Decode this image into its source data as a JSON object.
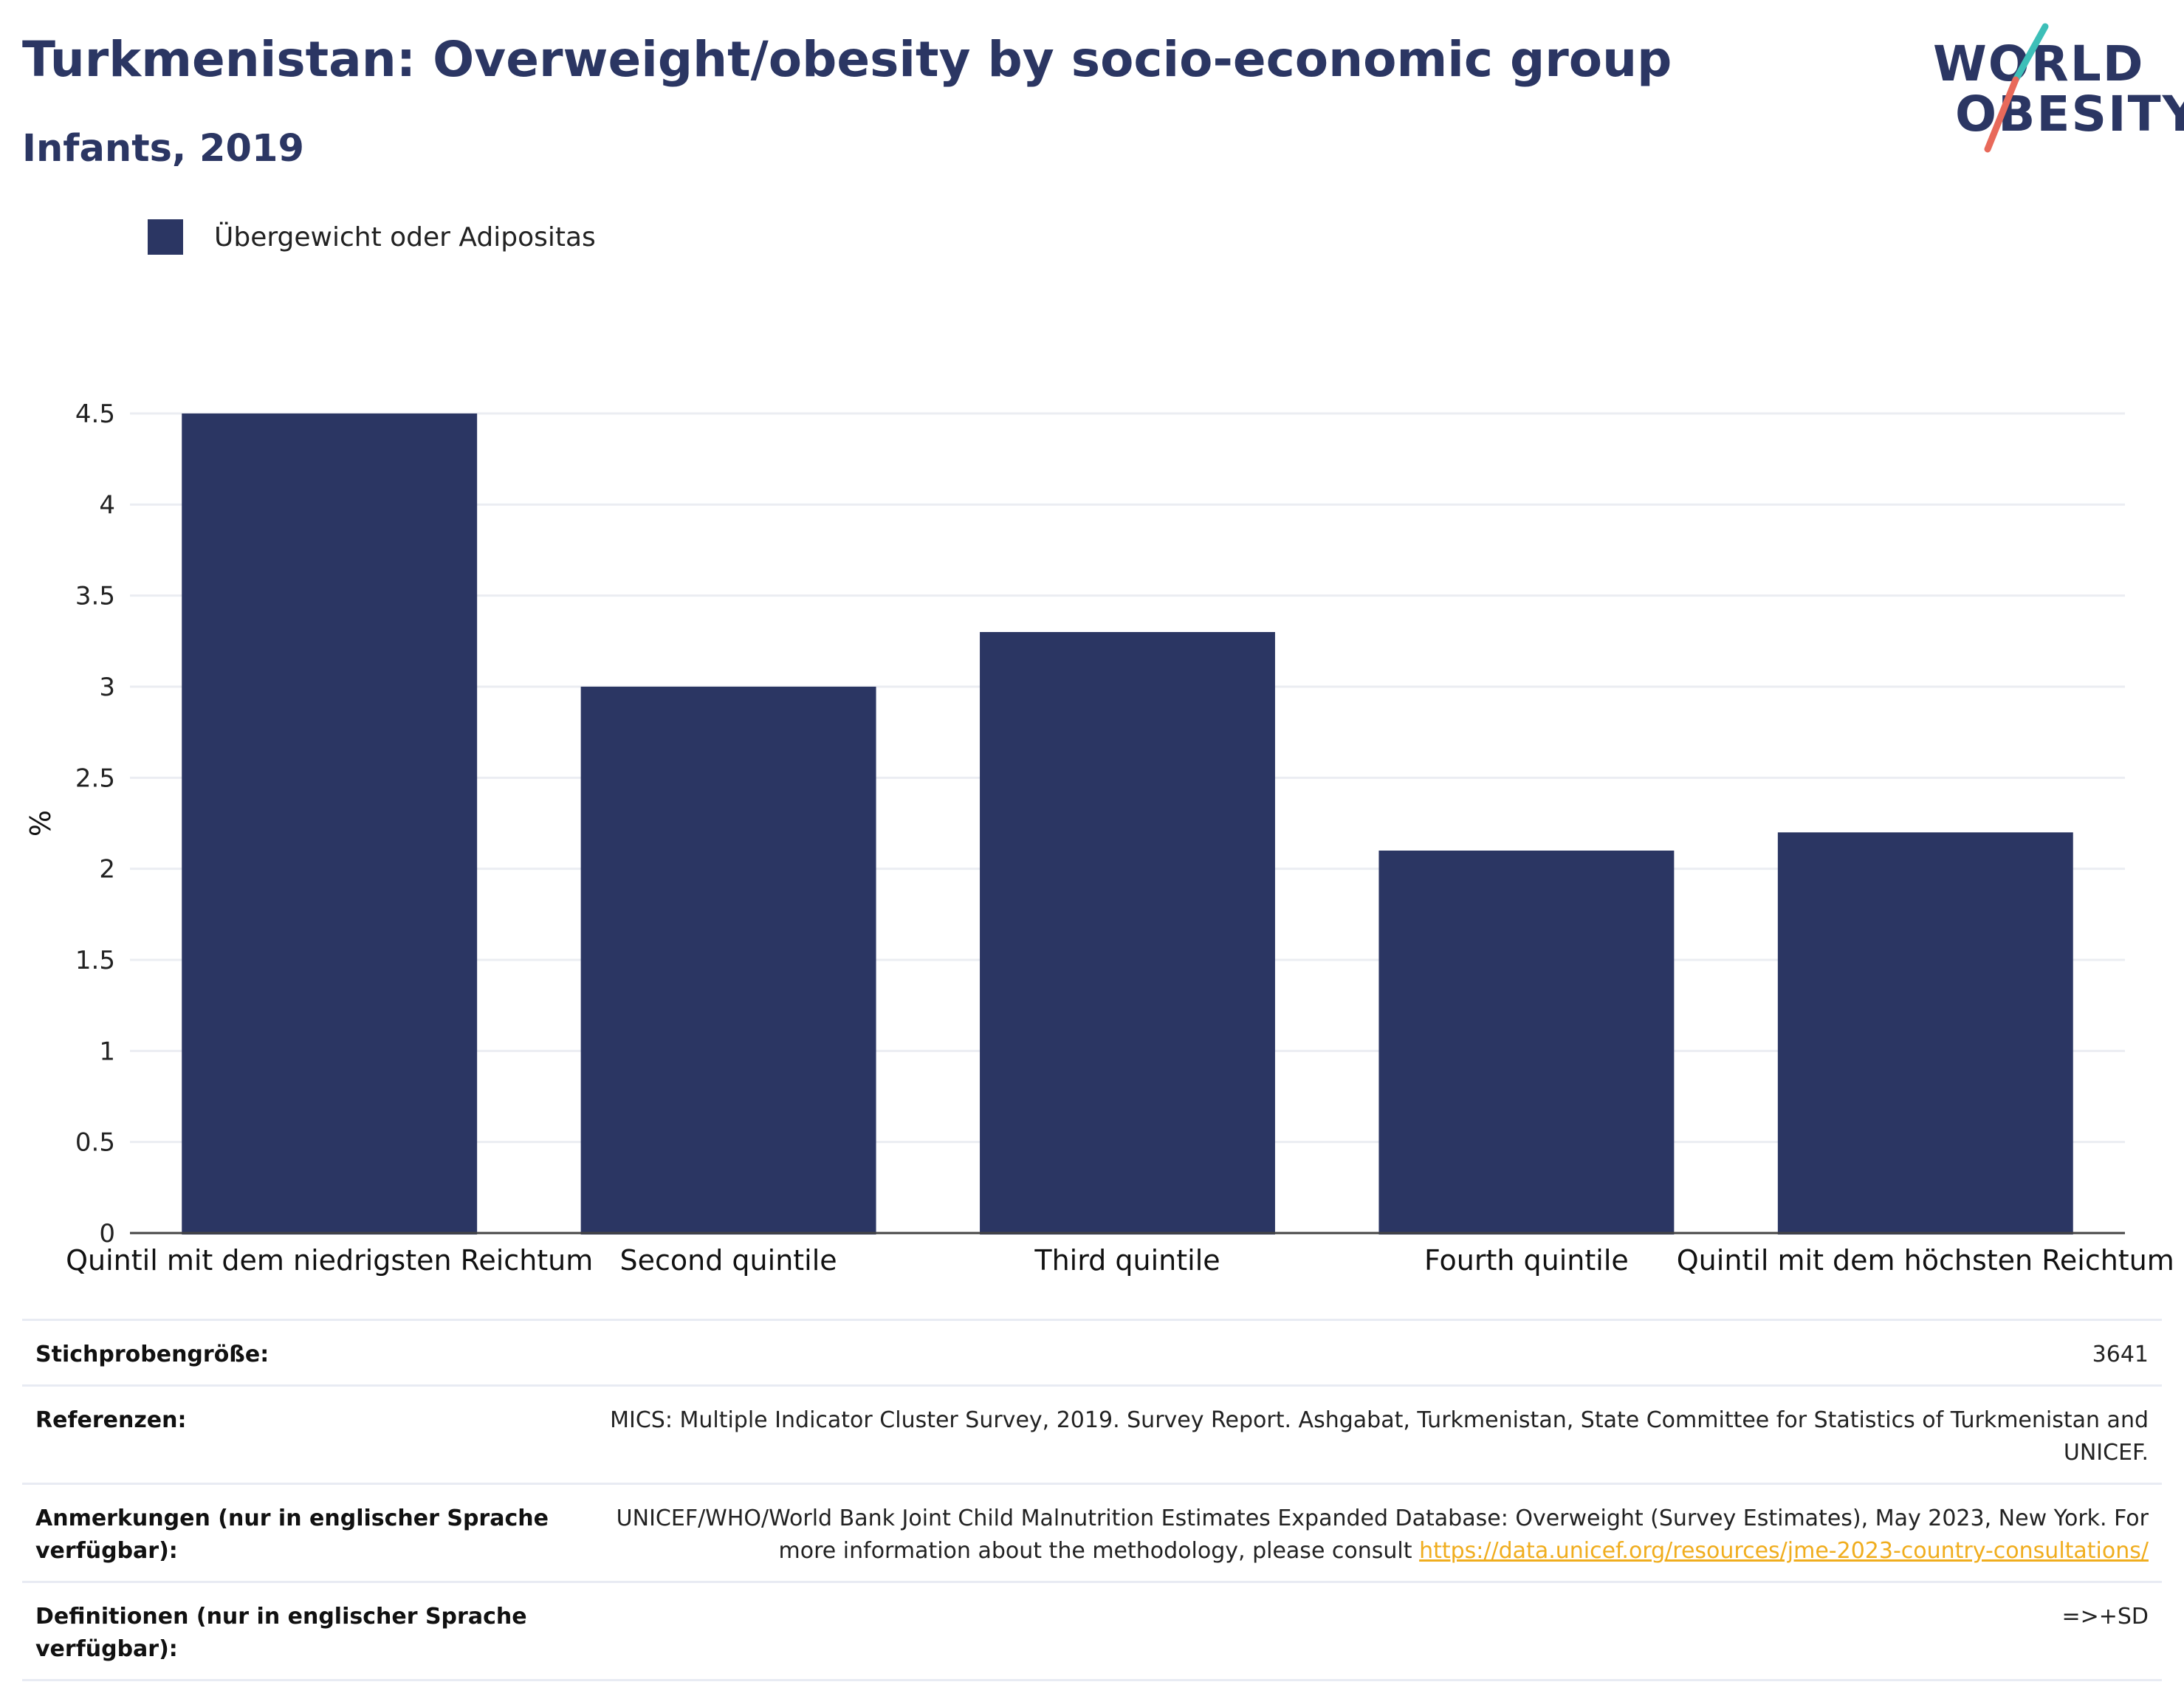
{
  "header": {
    "title": "Turkmenistan: Overweight/obesity by socio-economic group",
    "subtitle": "Infants, 2019"
  },
  "logo": {
    "line1": "WORLD",
    "line2": "OBESITY",
    "slash_colors": [
      "#3dbfb8",
      "#e8695a"
    ]
  },
  "legend": {
    "label": "Übergewicht oder Adipositas",
    "color": "#2b3663"
  },
  "chart_data": {
    "type": "bar",
    "categories": [
      "Quintil mit dem niedrigsten Reichtum",
      "Second quintile",
      "Third quintile",
      "Fourth quintile",
      "Quintil mit dem höchsten Reichtum"
    ],
    "series": [
      {
        "name": "Übergewicht oder Adipositas",
        "values": [
          4.5,
          3.0,
          3.3,
          2.1,
          2.2
        ],
        "color": "#2b3663"
      }
    ],
    "ylabel": "%",
    "ylim": [
      0,
      4.5
    ],
    "yticks": [
      "0",
      "0.5",
      "1",
      "1.5",
      "2",
      "2.5",
      "3",
      "3.5",
      "4",
      "4.5"
    ],
    "grid": true,
    "legend_position": "top-left"
  },
  "info": {
    "sample_size": {
      "key": "Stichprobengröße:",
      "value": "3641"
    },
    "references": {
      "key": "Referenzen:",
      "value": "MICS: Multiple Indicator Cluster Survey, 2019. Survey Report. Ashgabat, Turkmenistan, State Committee for Statistics of Turkmenistan and UNICEF."
    },
    "notes": {
      "key": "Anmerkungen (nur in englischer Sprache verfügbar):",
      "value": "UNICEF/WHO/World Bank Joint Child Malnutrition Estimates Expanded Database: Overweight (Survey Estimates), May 2023, New York. For more information about the methodology, please consult",
      "link": "https://data.unicef.org/resources/jme-2023-country-consultations/"
    },
    "definitions": {
      "key": "Definitionen (nur in englischer Sprache verfügbar):",
      "value": "=>+SD"
    }
  }
}
